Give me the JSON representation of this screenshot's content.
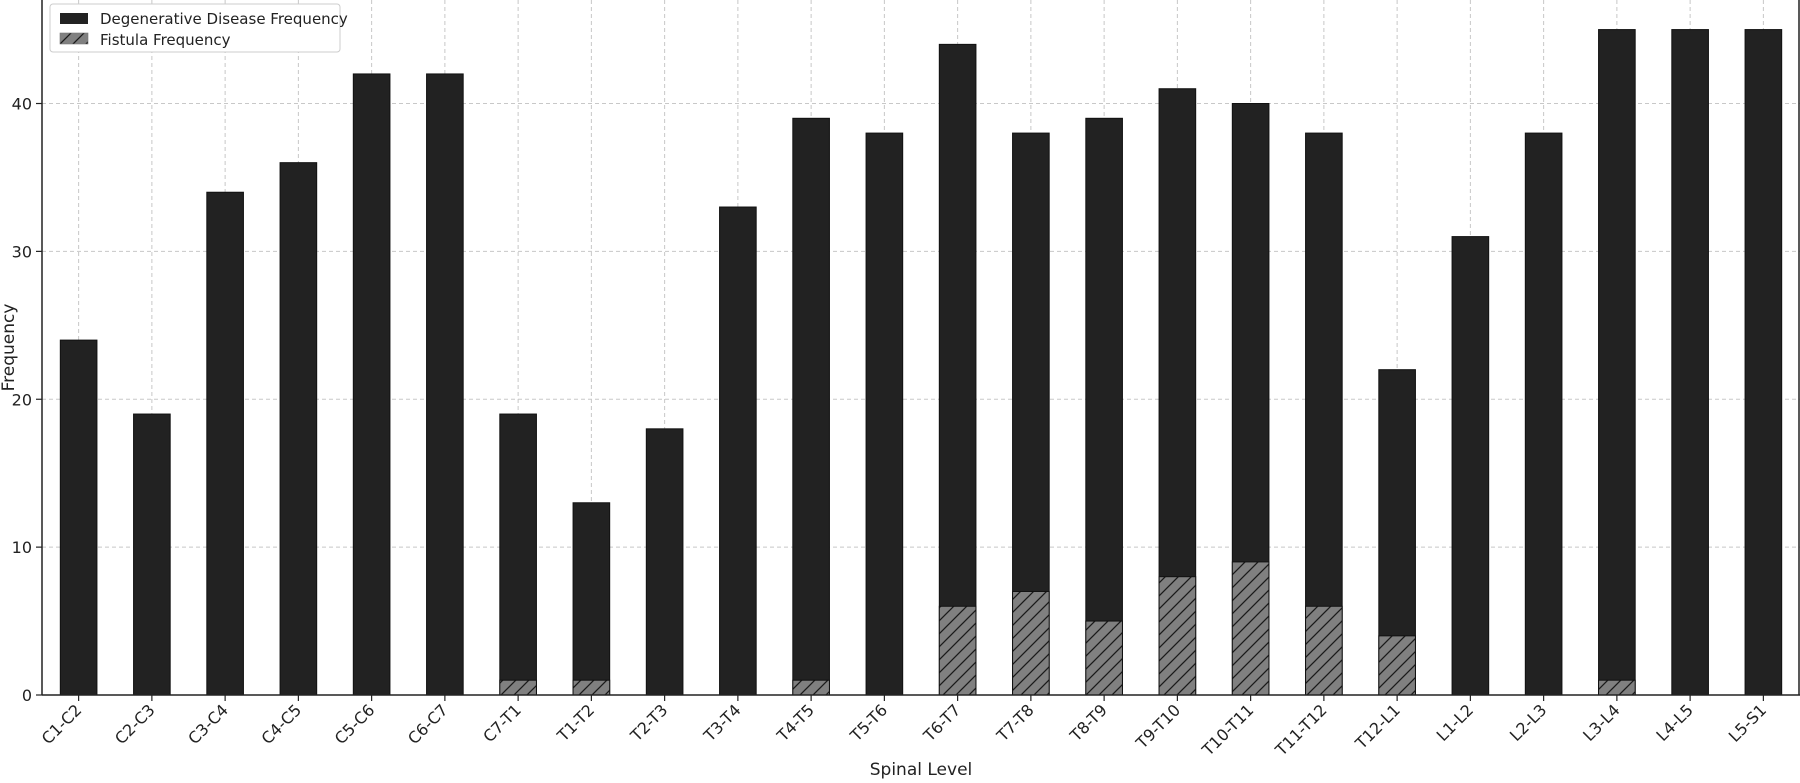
{
  "chart_data": {
    "type": "bar",
    "xlabel": "Spinal Level",
    "ylabel": "Frequency",
    "ylim": [
      0,
      47
    ],
    "yticks": [
      0,
      10,
      20,
      30,
      40
    ],
    "grid": true,
    "legend_placement": "top-left",
    "categories": [
      "C1-C2",
      "C2-C3",
      "C3-C4",
      "C4-C5",
      "C5-C6",
      "C6-C7",
      "C7-T1",
      "T1-T2",
      "T2-T3",
      "T3-T4",
      "T4-T5",
      "T5-T6",
      "T6-T7",
      "T7-T8",
      "T8-T9",
      "T9-T10",
      "T10-T11",
      "T11-T12",
      "T12-L1",
      "L1-L2",
      "L2-L3",
      "L3-L4",
      "L4-L5",
      "L5-S1"
    ],
    "series": [
      {
        "name": "Degenerative Disease Frequency",
        "color": "#222222",
        "pattern": "solid",
        "values": [
          24,
          19,
          34,
          36,
          42,
          42,
          19,
          13,
          18,
          33,
          39,
          38,
          44,
          38,
          39,
          41,
          40,
          38,
          22,
          31,
          38,
          45,
          45,
          45
        ]
      },
      {
        "name": "Fistula Frequency",
        "color": "#808080",
        "pattern": "hatched",
        "values": [
          0,
          0,
          0,
          0,
          0,
          0,
          1,
          1,
          0,
          0,
          1,
          0,
          6,
          7,
          5,
          8,
          9,
          6,
          4,
          0,
          0,
          1,
          0,
          0
        ]
      }
    ]
  }
}
